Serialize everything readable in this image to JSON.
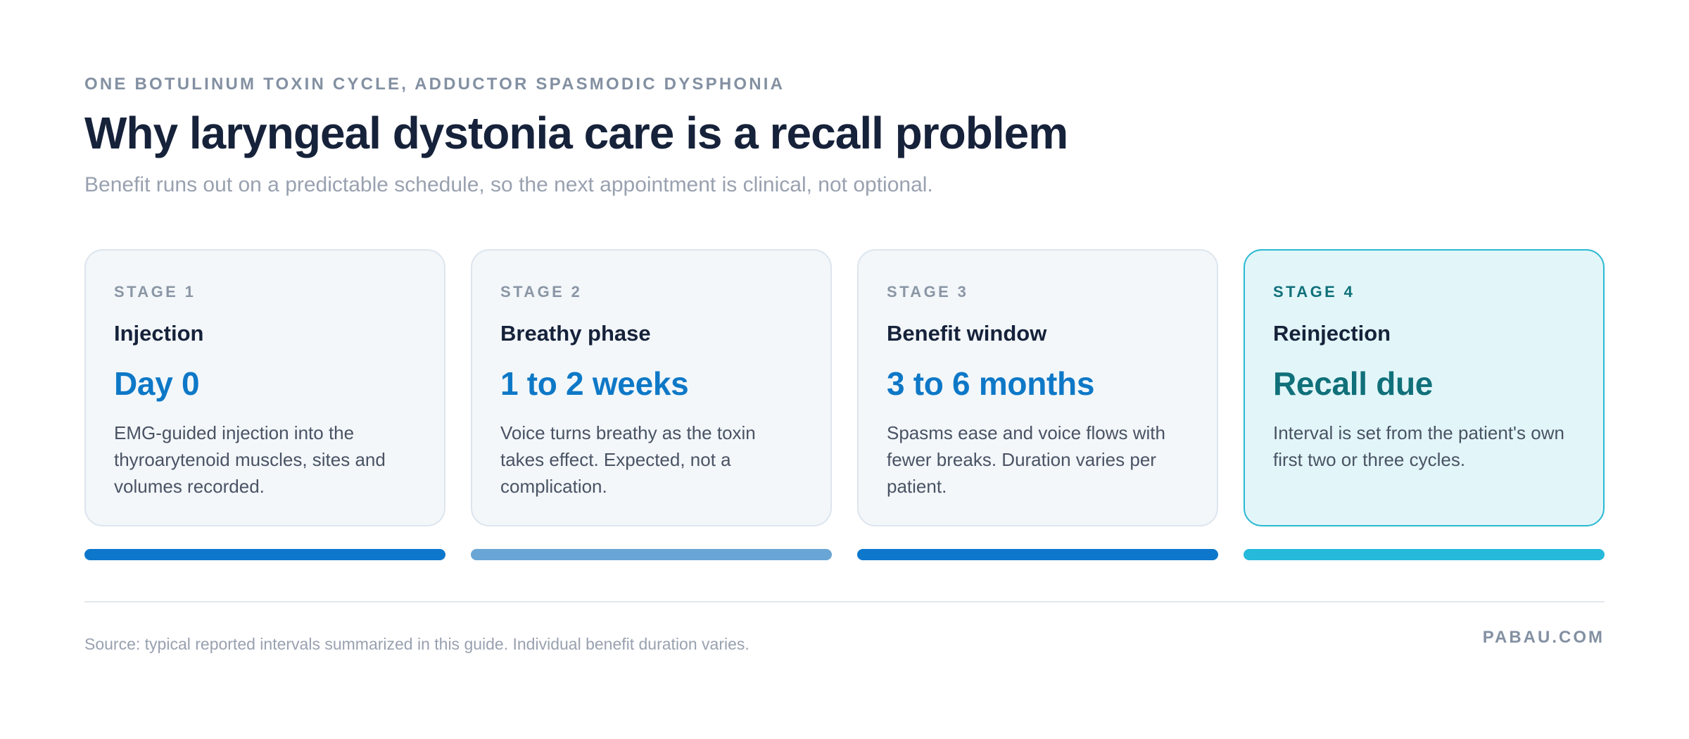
{
  "header": {
    "eyebrow": "ONE BOTULINUM TOXIN CYCLE, ADDUCTOR SPASMODIC DYSPHONIA",
    "title": "Why laryngeal dystonia care is a recall problem",
    "subtitle": "Benefit runs out on a predictable schedule, so the next appointment is clinical, not optional."
  },
  "stages": [
    {
      "label": "STAGE 1",
      "name": "Injection",
      "time": "Day 0",
      "description": "EMG-guided injection into the thyroarytenoid muscles, sites and volumes recorded.",
      "bar_color": "#0d77cc"
    },
    {
      "label": "STAGE 2",
      "name": "Breathy phase",
      "time": "1 to 2 weeks",
      "description": "Voice turns breathy as the toxin takes effect. Expected, not a complication.",
      "bar_color": "#6aa6d5"
    },
    {
      "label": "STAGE 3",
      "name": "Benefit window",
      "time": "3 to 6 months",
      "description": "Spasms ease and voice flows with fewer breaks. Duration varies per patient.",
      "bar_color": "#0d77cc"
    },
    {
      "label": "STAGE 4",
      "name": "Reinjection",
      "time": "Recall due",
      "description": "Interval is set from the patient's own first two or three cycles.",
      "bar_color": "#26b9dc"
    }
  ],
  "footer": {
    "source": "Source: typical reported intervals summarized in this guide. Individual benefit duration varies.",
    "brand": "PABAU.COM"
  }
}
